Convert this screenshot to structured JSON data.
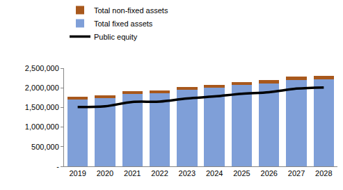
{
  "chart_data": {
    "type": "bar",
    "stacked": true,
    "categories": [
      "2019",
      "2020",
      "2021",
      "2022",
      "2023",
      "2024",
      "2025",
      "2026",
      "2027",
      "2028"
    ],
    "series": [
      {
        "name": "Total fixed assets",
        "type": "bar",
        "color": "#7f9fd8",
        "values": [
          1700000,
          1730000,
          1850000,
          1870000,
          1950000,
          2000000,
          2070000,
          2110000,
          2200000,
          2220000
        ]
      },
      {
        "name": "Total non-fixed assets",
        "type": "bar",
        "color": "#a8581c",
        "values": [
          65000,
          70000,
          60000,
          70000,
          70000,
          70000,
          80000,
          80000,
          80000,
          80000
        ]
      },
      {
        "name": "Public equity",
        "type": "line",
        "color": "#000000",
        "values": [
          1510000,
          1530000,
          1640000,
          1650000,
          1730000,
          1780000,
          1850000,
          1890000,
          1980000,
          2010000
        ]
      }
    ],
    "ylim": [
      0,
      2500000
    ],
    "yticks": [
      {
        "value": 0,
        "label": "-"
      },
      {
        "value": 500000,
        "label": "500,000"
      },
      {
        "value": 1000000,
        "label": "1,000,000"
      },
      {
        "value": 1500000,
        "label": "1,500,000"
      },
      {
        "value": 2000000,
        "label": "2,000,000"
      },
      {
        "value": 2500000,
        "label": "2,500,000"
      }
    ],
    "grid": false,
    "legend": "top"
  }
}
